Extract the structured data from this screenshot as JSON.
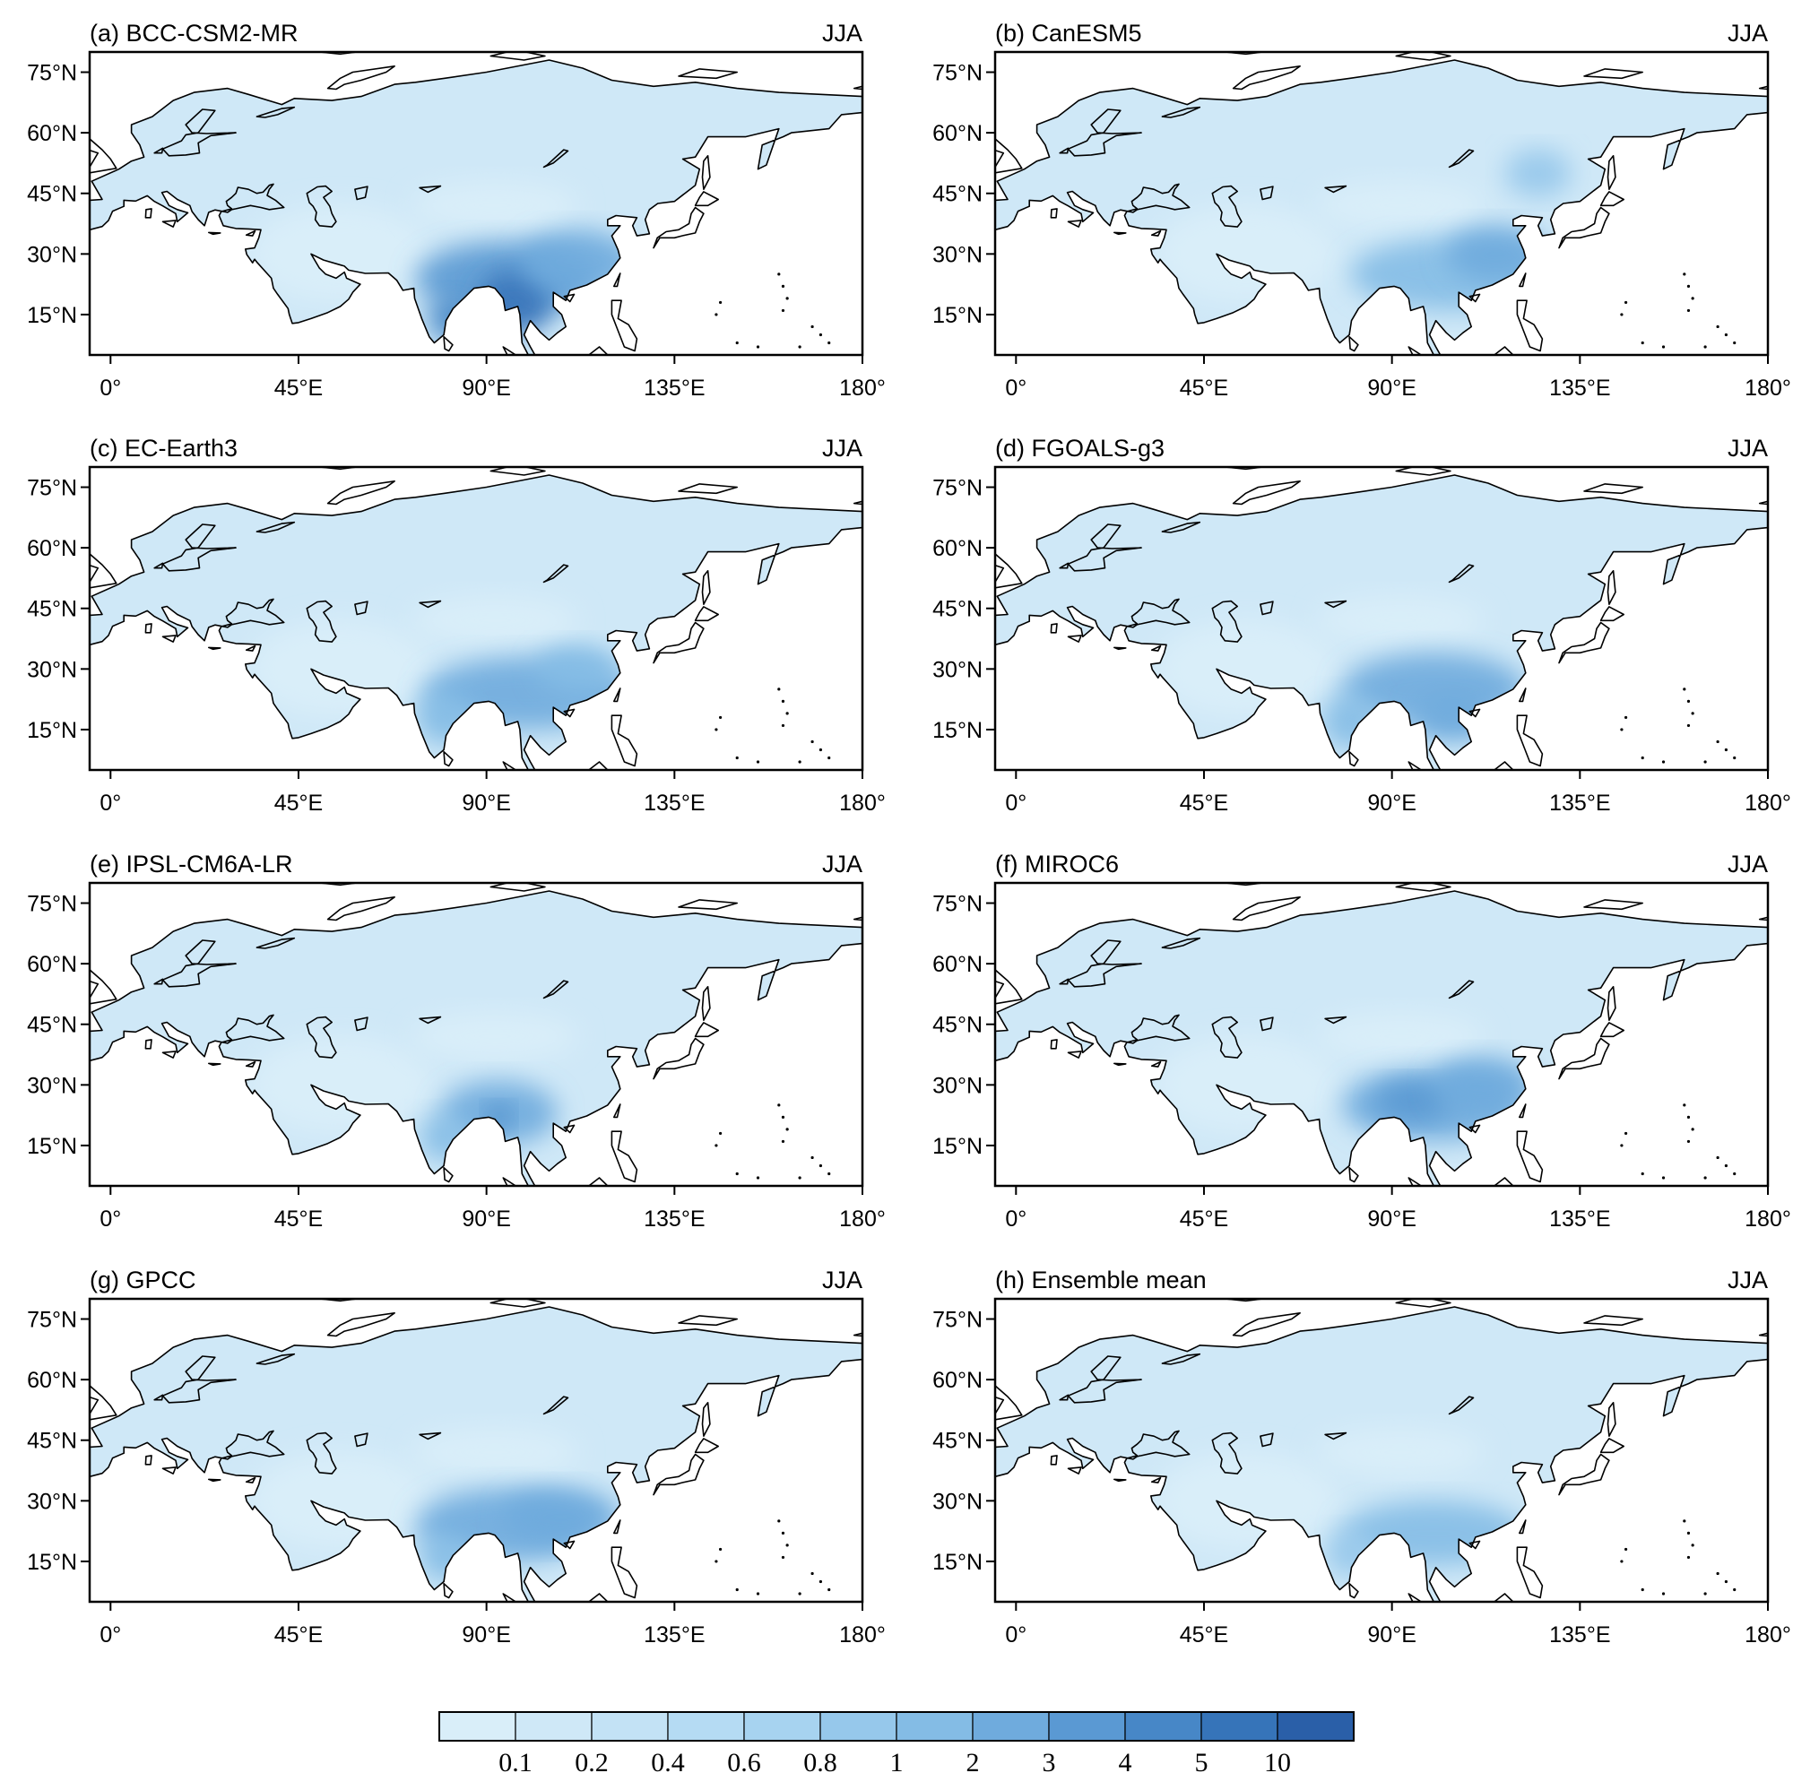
{
  "colors": {
    "land_base": "#cfe8f7",
    "ocean": "#ffffff",
    "outline": "#000000"
  },
  "colorbar": {
    "colors": [
      "#d9eef9",
      "#cfe8f7",
      "#c3e2f5",
      "#b5dbf3",
      "#a7d3f0",
      "#96c8eb",
      "#84bce5",
      "#6fabdd",
      "#5a99d3",
      "#4787c7",
      "#3674b9",
      "#2a5fa8"
    ],
    "tick_labels": [
      "0.1",
      "0.2",
      "0.4",
      "0.6",
      "0.8",
      "1",
      "2",
      "3",
      "4",
      "5",
      "10"
    ]
  },
  "map": {
    "lon_range": [
      -5,
      180
    ],
    "lat_range": [
      5,
      80
    ],
    "x_ticks": [
      {
        "lon": 0,
        "label": "0°"
      },
      {
        "lon": 45,
        "label": "45°E"
      },
      {
        "lon": 90,
        "label": "90°E"
      },
      {
        "lon": 135,
        "label": "135°E"
      },
      {
        "lon": 180,
        "label": "180°"
      }
    ],
    "y_ticks": [
      {
        "lat": 75,
        "label": "75°N"
      },
      {
        "lat": 60,
        "label": "60°N"
      },
      {
        "lat": 45,
        "label": "45°N"
      },
      {
        "lat": 30,
        "label": "30°N"
      },
      {
        "lat": 15,
        "label": "15°N"
      }
    ]
  },
  "panels": [
    {
      "title": "(a) BCC-CSM2-MR",
      "season": "JJA",
      "wet": [
        {
          "lon": 95,
          "lat": 24,
          "rx": 22,
          "ry": 9,
          "level": 8
        },
        {
          "lon": 97,
          "lat": 18,
          "rx": 9,
          "ry": 8,
          "level": 10
        },
        {
          "lon": 82,
          "lat": 14,
          "rx": 6,
          "ry": 6,
          "level": 9
        },
        {
          "lon": 112,
          "lat": 28,
          "rx": 14,
          "ry": 8,
          "level": 7
        }
      ]
    },
    {
      "title": "(b) CanESM5",
      "season": "JJA",
      "wet": [
        {
          "lon": 105,
          "lat": 25,
          "rx": 25,
          "ry": 9,
          "level": 6
        },
        {
          "lon": 115,
          "lat": 30,
          "rx": 12,
          "ry": 7,
          "level": 7
        },
        {
          "lon": 125,
          "lat": 50,
          "rx": 8,
          "ry": 6,
          "level": 5
        }
      ]
    },
    {
      "title": "(c) EC-Earth3",
      "season": "JJA",
      "wet": [
        {
          "lon": 100,
          "lat": 24,
          "rx": 25,
          "ry": 9,
          "level": 7
        },
        {
          "lon": 80,
          "lat": 18,
          "rx": 7,
          "ry": 7,
          "level": 6
        },
        {
          "lon": 112,
          "lat": 30,
          "rx": 10,
          "ry": 6,
          "level": 6
        }
      ]
    },
    {
      "title": "(d) FGOALS-g3",
      "season": "JJA",
      "wet": [
        {
          "lon": 100,
          "lat": 25,
          "rx": 22,
          "ry": 9,
          "level": 7
        },
        {
          "lon": 80,
          "lat": 17,
          "rx": 7,
          "ry": 7,
          "level": 6
        },
        {
          "lon": 105,
          "lat": 18,
          "rx": 10,
          "ry": 6,
          "level": 7
        }
      ]
    },
    {
      "title": "(e) IPSL-CM6A-LR",
      "season": "JJA",
      "wet": [
        {
          "lon": 93,
          "lat": 23,
          "rx": 14,
          "ry": 8,
          "level": 7
        },
        {
          "lon": 93,
          "lat": 22,
          "rx": 3,
          "ry": 3,
          "level": 9
        },
        {
          "lon": 80,
          "lat": 17,
          "rx": 6,
          "ry": 6,
          "level": 6
        }
      ]
    },
    {
      "title": "(f) MIROC6",
      "season": "JJA",
      "wet": [
        {
          "lon": 100,
          "lat": 25,
          "rx": 22,
          "ry": 9,
          "level": 7
        },
        {
          "lon": 95,
          "lat": 26,
          "rx": 9,
          "ry": 5,
          "level": 8
        },
        {
          "lon": 112,
          "lat": 30,
          "rx": 12,
          "ry": 7,
          "level": 7
        }
      ]
    },
    {
      "title": "(g) GPCC",
      "season": "JJA",
      "wet": [
        {
          "lon": 95,
          "lat": 24,
          "rx": 22,
          "ry": 9,
          "level": 7
        },
        {
          "lon": 108,
          "lat": 26,
          "rx": 14,
          "ry": 7,
          "level": 7
        },
        {
          "lon": 80,
          "lat": 16,
          "rx": 6,
          "ry": 6,
          "level": 6
        }
      ]
    },
    {
      "title": "(h) Ensemble mean",
      "season": "JJA",
      "wet": [
        {
          "lon": 100,
          "lat": 22,
          "rx": 22,
          "ry": 8,
          "level": 6
        },
        {
          "lon": 80,
          "lat": 17,
          "rx": 6,
          "ry": 6,
          "level": 5
        }
      ]
    }
  ]
}
